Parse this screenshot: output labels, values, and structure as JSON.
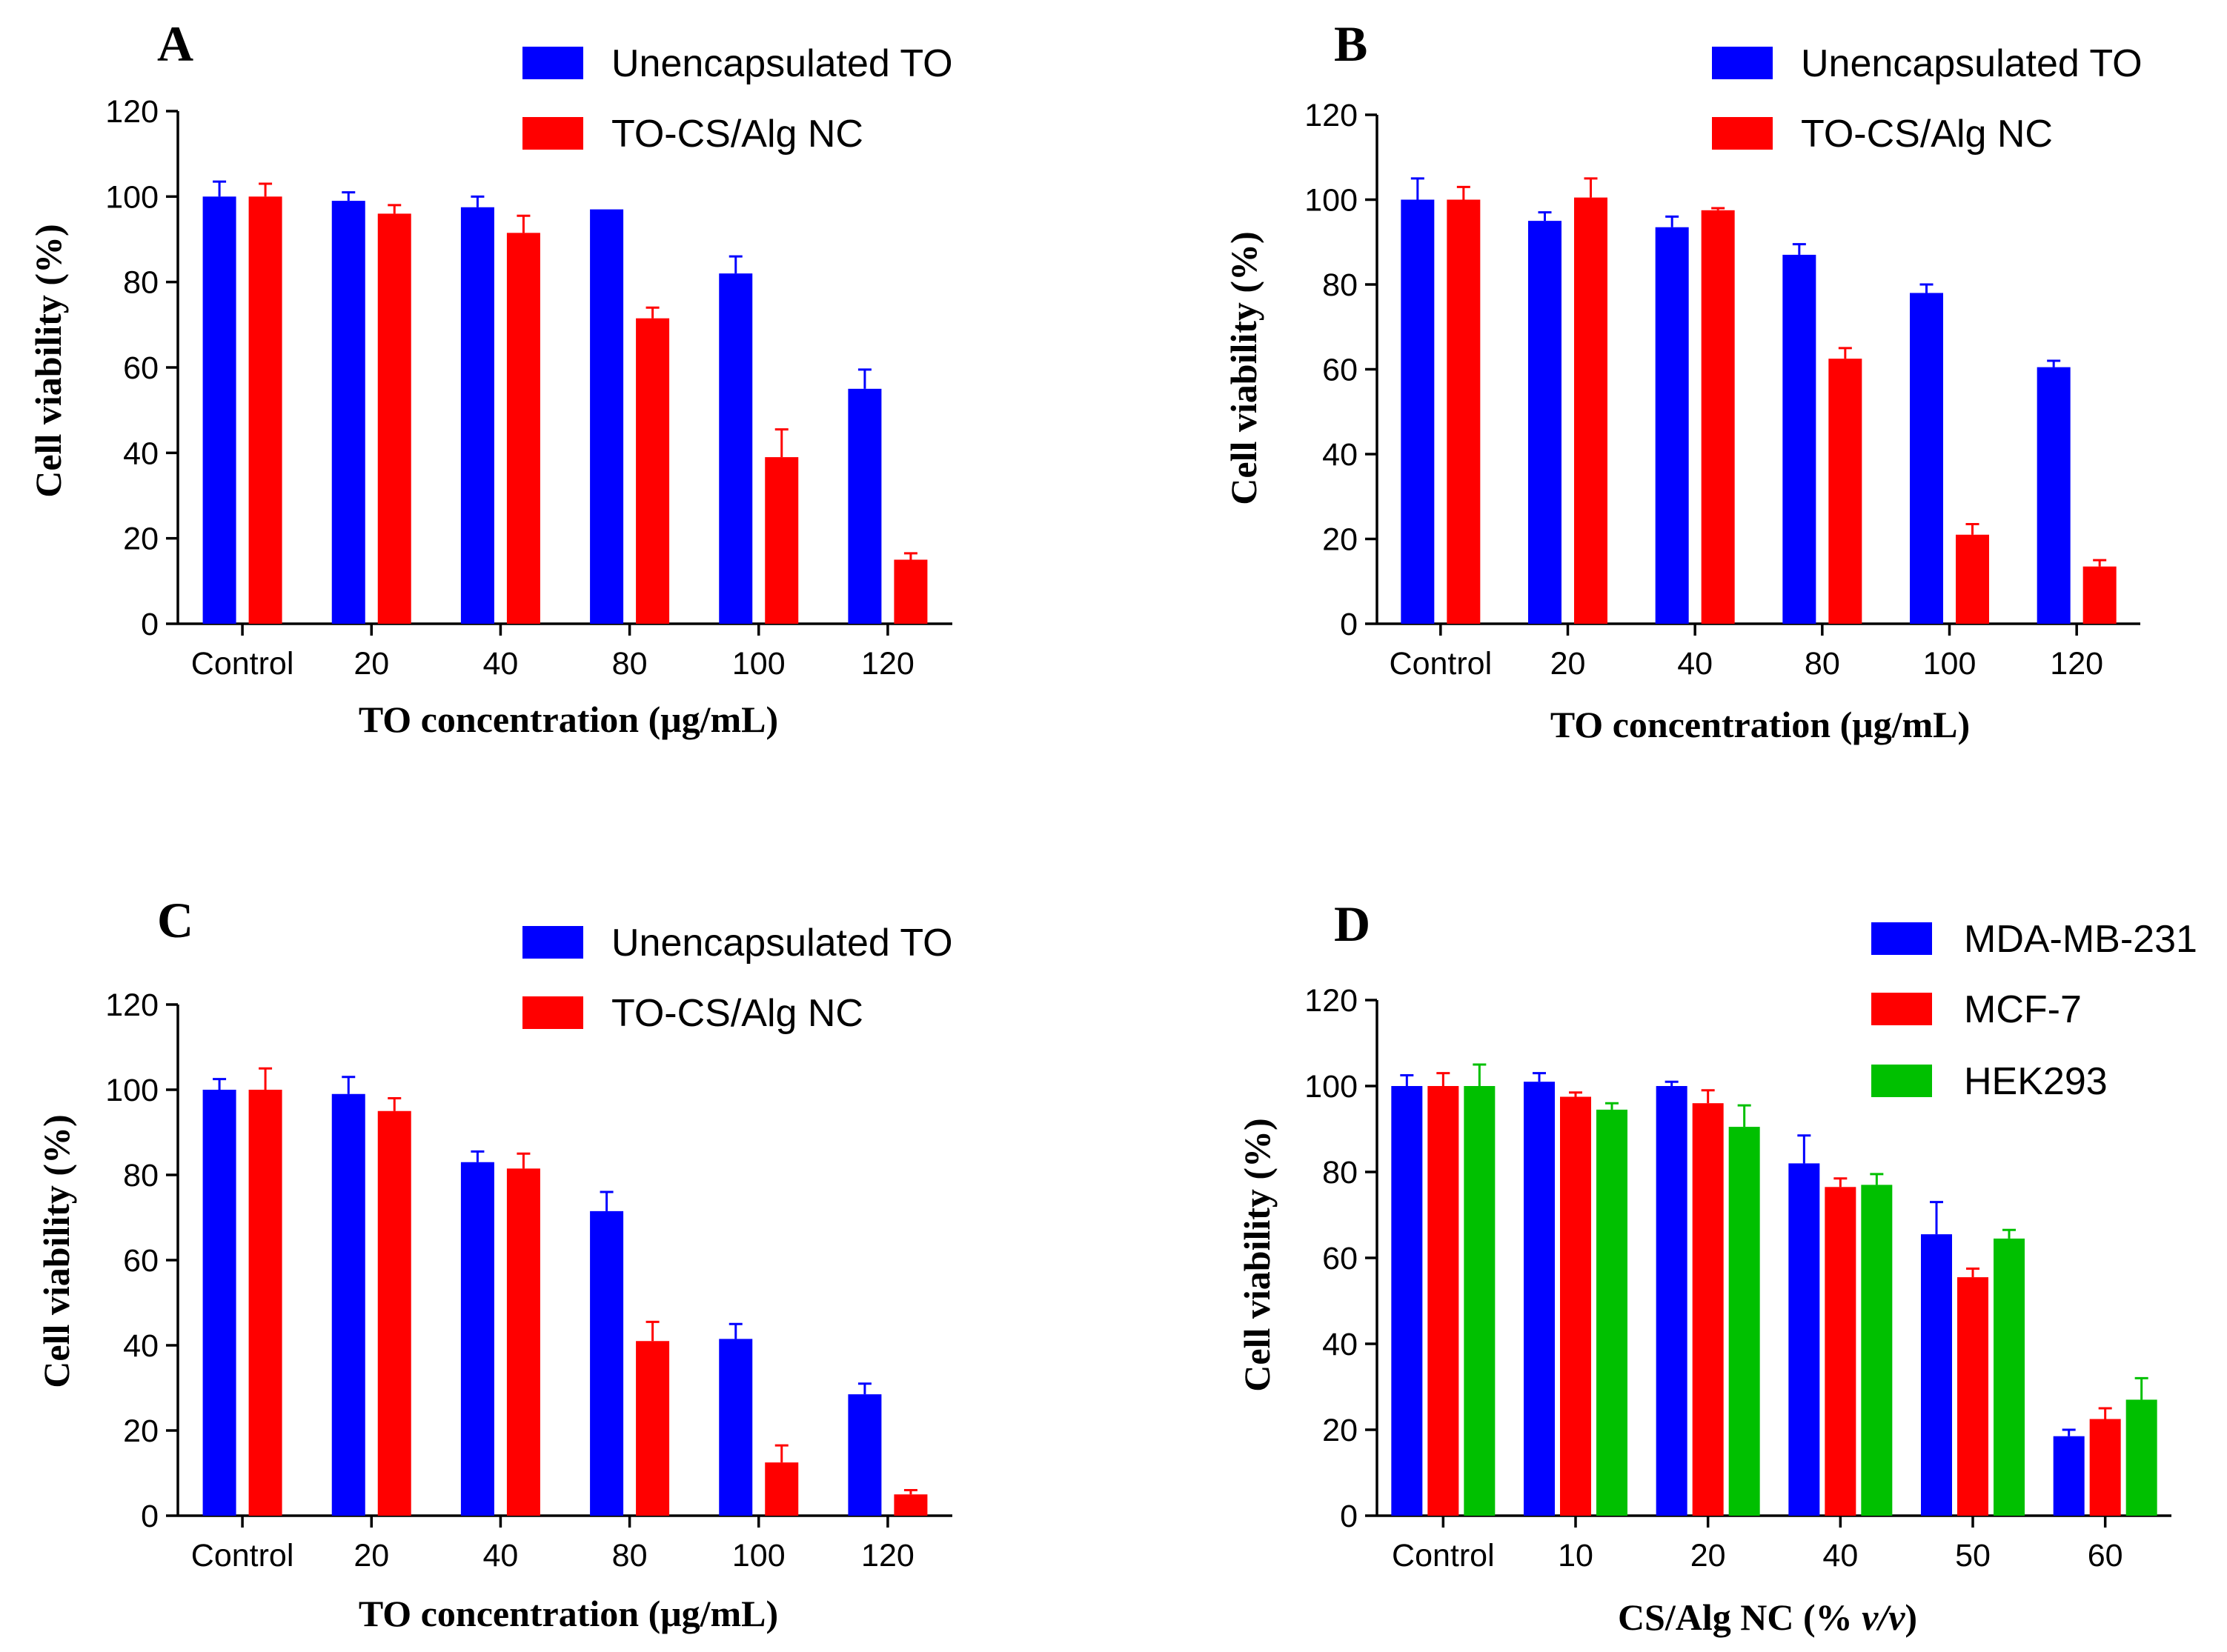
{
  "colors": {
    "blue": "#0000FF",
    "red": "#FF0000",
    "green": "#00C000"
  },
  "chart_data": [
    {
      "panel": "A",
      "type": "bar",
      "xlabel": "TO concentration (μg/mL)",
      "ylabel": "Cell viability (%)",
      "ylim": [
        0,
        120
      ],
      "yticks": [
        "0",
        "20",
        "40",
        "60",
        "80",
        "100",
        "120"
      ],
      "categories": [
        "Control",
        "20",
        "40",
        "80",
        "100",
        "120"
      ],
      "series": [
        {
          "name": "Unencapsulated TO",
          "color": "#0000FF",
          "values": [
            100,
            99,
            97.5,
            97,
            82,
            55
          ],
          "errors": [
            3.5,
            2,
            2.5,
            0,
            4,
            4.5
          ]
        },
        {
          "name": "TO-CS/Alg NC",
          "color": "#FF0000",
          "values": [
            100,
            96,
            91.5,
            71.5,
            39,
            15
          ],
          "errors": [
            3,
            2,
            4,
            2.5,
            6.5,
            1.5
          ]
        }
      ]
    },
    {
      "panel": "B",
      "type": "bar",
      "xlabel": "TO concentration (μg/mL)",
      "ylabel": "Cell viability (%)",
      "ylim": [
        0,
        120
      ],
      "yticks": [
        "0",
        "20",
        "40",
        "60",
        "80",
        "100",
        "120"
      ],
      "categories": [
        "Control",
        "20",
        "40",
        "80",
        "100",
        "120"
      ],
      "series": [
        {
          "name": "Unencapsulated TO",
          "color": "#0000FF",
          "values": [
            100,
            95,
            93.5,
            87,
            78,
            60.5
          ],
          "errors": [
            5,
            2,
            2.5,
            2.5,
            2,
            1.5
          ]
        },
        {
          "name": "TO-CS/Alg NC",
          "color": "#FF0000",
          "values": [
            100,
            100.5,
            97.5,
            62.5,
            21,
            13.5
          ],
          "errors": [
            3,
            4.5,
            0.5,
            2.5,
            2.5,
            1.5
          ]
        }
      ]
    },
    {
      "panel": "C",
      "type": "bar",
      "xlabel": "TO concentration (μg/mL)",
      "ylabel": "Cell viability (%)",
      "ylim": [
        0,
        120
      ],
      "yticks": [
        "0",
        "20",
        "40",
        "60",
        "80",
        "100",
        "120"
      ],
      "categories": [
        "Control",
        "20",
        "40",
        "80",
        "100",
        "120"
      ],
      "series": [
        {
          "name": "Unencapsulated TO",
          "color": "#0000FF",
          "values": [
            100,
            99,
            83,
            71.5,
            41.5,
            28.5
          ],
          "errors": [
            2.5,
            4,
            2.5,
            4.5,
            3.5,
            2.5
          ]
        },
        {
          "name": "TO-CS/Alg NC",
          "color": "#FF0000",
          "values": [
            100,
            95,
            81.5,
            41,
            12.5,
            5
          ],
          "errors": [
            5,
            3,
            3.5,
            4.5,
            4,
            1
          ]
        }
      ]
    },
    {
      "panel": "D",
      "type": "bar",
      "xlabel_main": "CS/Alg NC (% ",
      "xlabel_italic": "v/v",
      "xlabel_end": ")",
      "ylabel": "Cell viability (%)",
      "ylim": [
        0,
        120
      ],
      "yticks": [
        "0",
        "20",
        "40",
        "60",
        "80",
        "100",
        "120"
      ],
      "categories": [
        "Control",
        "10",
        "20",
        "40",
        "50",
        "60"
      ],
      "series": [
        {
          "name": "MDA-MB-231",
          "color": "#0000FF",
          "values": [
            100,
            101,
            100,
            82,
            65.5,
            18.5
          ],
          "errors": [
            2.5,
            2,
            1,
            6.5,
            7.5,
            1.5
          ]
        },
        {
          "name": "MCF-7",
          "color": "#FF0000",
          "values": [
            100,
            97.5,
            96,
            76.5,
            55.5,
            22.5
          ],
          "errors": [
            3,
            1,
            3,
            2,
            2,
            2.5
          ]
        },
        {
          "name": "HEK293",
          "color": "#00C000",
          "values": [
            100,
            94.5,
            90.5,
            77,
            64.5,
            27
          ],
          "errors": [
            5,
            1.5,
            5,
            2.5,
            2,
            5
          ]
        }
      ]
    }
  ]
}
